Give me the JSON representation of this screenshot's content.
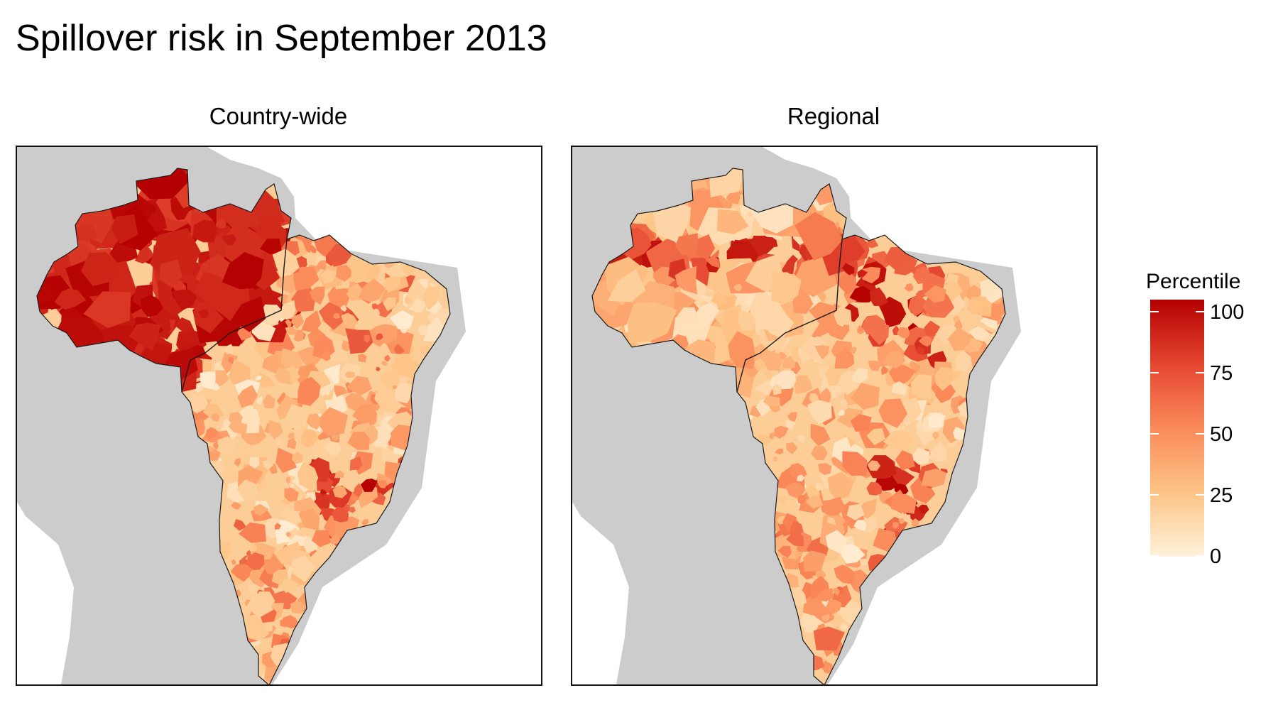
{
  "title": "Spillover risk in September 2013",
  "facets": [
    "Country-wide",
    "Regional"
  ],
  "legend": {
    "title": "Percentile",
    "ticks": [
      "0",
      "25",
      "50",
      "75",
      "100"
    ],
    "colors": [
      "#fff1da",
      "#fdc486",
      "#fb8a5a",
      "#e4462f",
      "#b40000"
    ]
  },
  "map": {
    "land_color": "#cccccc",
    "ocean_color": "#ffffff",
    "border_color": "#1a1a1a"
  }
}
